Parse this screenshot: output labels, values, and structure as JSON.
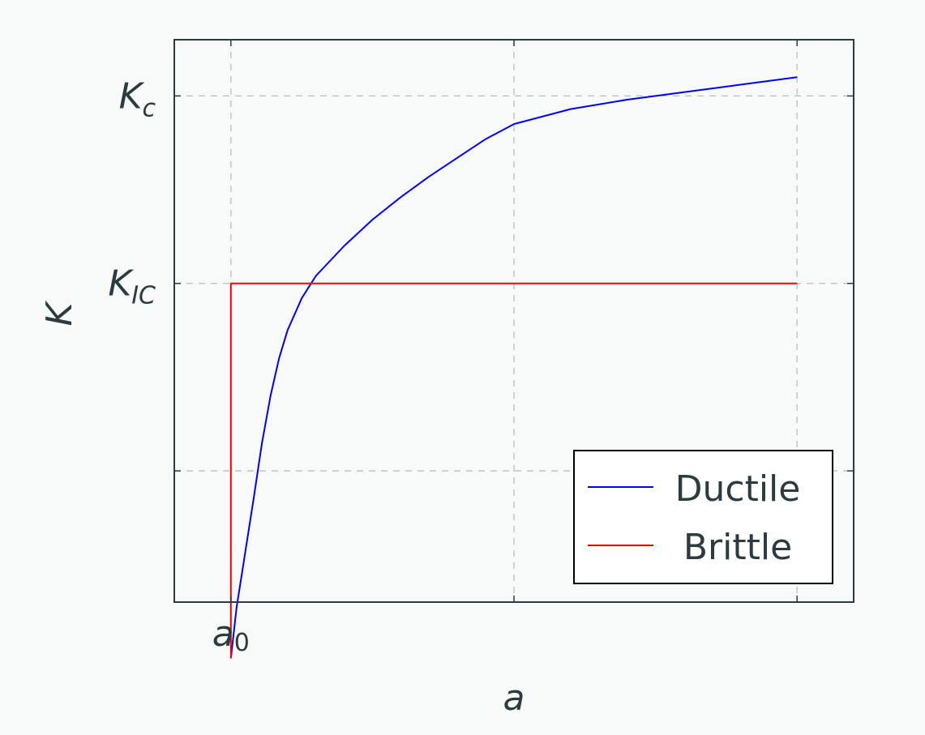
{
  "chart_data": {
    "type": "line",
    "title": "",
    "xlabel": "a",
    "ylabel": "K",
    "x_ticks": [
      {
        "value": 1,
        "label": "a",
        "sub": "0"
      },
      {
        "value": 2,
        "label": "",
        "sub": ""
      },
      {
        "value": 3,
        "label": "",
        "sub": ""
      }
    ],
    "y_ticks": [
      {
        "value": 1,
        "label": "",
        "sub": ""
      },
      {
        "value": 2,
        "label": "K",
        "sub": "IC"
      },
      {
        "value": 3,
        "label": "K",
        "sub": "c"
      }
    ],
    "xlim": [
      0.8,
      3.2
    ],
    "ylim": [
      0.3,
      3.3
    ],
    "grid": true,
    "legend_position": "bottom-right",
    "series": [
      {
        "name": "Ductile",
        "color": "#0000ff",
        "x": [
          1.0,
          1.02,
          1.05,
          1.08,
          1.11,
          1.14,
          1.17,
          1.2,
          1.25,
          1.3,
          1.4,
          1.5,
          1.6,
          1.7,
          1.8,
          1.9,
          2.0,
          2.2,
          2.4,
          2.6,
          2.8,
          3.0
        ],
        "y": [
          0.0,
          0.27,
          0.56,
          0.85,
          1.15,
          1.4,
          1.6,
          1.75,
          1.92,
          2.04,
          2.2,
          2.34,
          2.46,
          2.57,
          2.67,
          2.77,
          2.85,
          2.93,
          2.98,
          3.02,
          3.06,
          3.1
        ]
      },
      {
        "name": "Brittle",
        "color": "#ff0000",
        "x": [
          1.0,
          1.0,
          3.0
        ],
        "y": [
          0.0,
          2.0,
          2.0
        ]
      }
    ]
  }
}
